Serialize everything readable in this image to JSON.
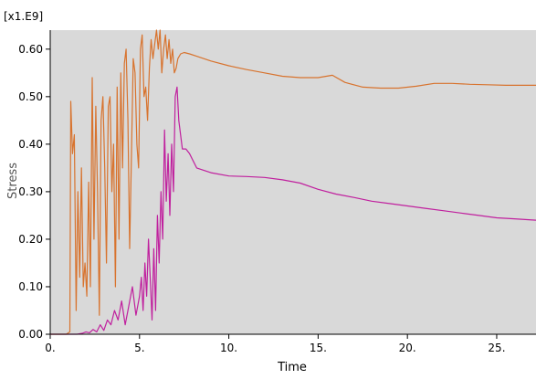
{
  "chart_data": {
    "type": "line",
    "title": "",
    "xlabel": "Time",
    "ylabel": "Stress",
    "y_scale_label": "[x1.E9]",
    "xlim": [
      0,
      27.2
    ],
    "ylim": [
      0,
      0.64
    ],
    "x_ticks": [
      0,
      5,
      10,
      15,
      20,
      25
    ],
    "x_tick_labels": [
      "0.",
      "5.",
      "10.",
      "15.",
      "20.",
      "25."
    ],
    "y_ticks": [
      0,
      0.1,
      0.2,
      0.3,
      0.4,
      0.5,
      0.6
    ],
    "y_tick_labels": [
      "0.00",
      "0.10",
      "0.20",
      "0.30",
      "0.40",
      "0.50",
      "0.60"
    ],
    "grid": false,
    "plot_background": "#d9d9d9",
    "series": [
      {
        "color": "#d8732e",
        "x": [
          0,
          0.3,
          0.6,
          0.9,
          1.1,
          1.15,
          1.25,
          1.35,
          1.45,
          1.55,
          1.65,
          1.75,
          1.85,
          1.95,
          2.05,
          2.15,
          2.25,
          2.35,
          2.45,
          2.55,
          2.65,
          2.75,
          2.85,
          2.95,
          3.05,
          3.15,
          3.25,
          3.35,
          3.45,
          3.55,
          3.65,
          3.75,
          3.85,
          3.95,
          4.05,
          4.15,
          4.25,
          4.35,
          4.45,
          4.55,
          4.65,
          4.75,
          4.85,
          4.95,
          5.05,
          5.15,
          5.25,
          5.35,
          5.45,
          5.55,
          5.65,
          5.75,
          5.85,
          5.95,
          6.05,
          6.15,
          6.25,
          6.35,
          6.45,
          6.55,
          6.65,
          6.75,
          6.85,
          6.95,
          7.05,
          7.15,
          7.3,
          7.5,
          7.8,
          8.2,
          9.0,
          10.0,
          11.0,
          12.0,
          13.0,
          14.0,
          15.0,
          15.8,
          16.5,
          17.5,
          18.5,
          19.5,
          20.5,
          21.5,
          22.5,
          23.5,
          24.5,
          25.5,
          26.5,
          27.2
        ],
        "y": [
          0,
          0,
          0,
          0,
          0.005,
          0.49,
          0.38,
          0.42,
          0.05,
          0.3,
          0.12,
          0.35,
          0.1,
          0.15,
          0.08,
          0.32,
          0.1,
          0.54,
          0.2,
          0.48,
          0.3,
          0.04,
          0.45,
          0.5,
          0.35,
          0.15,
          0.48,
          0.5,
          0.3,
          0.4,
          0.1,
          0.52,
          0.2,
          0.55,
          0.35,
          0.57,
          0.6,
          0.45,
          0.18,
          0.38,
          0.58,
          0.55,
          0.4,
          0.35,
          0.6,
          0.63,
          0.5,
          0.52,
          0.45,
          0.56,
          0.62,
          0.58,
          0.61,
          0.64,
          0.6,
          0.64,
          0.55,
          0.6,
          0.63,
          0.58,
          0.62,
          0.57,
          0.6,
          0.55,
          0.56,
          0.58,
          0.59,
          0.593,
          0.59,
          0.585,
          0.575,
          0.565,
          0.557,
          0.55,
          0.543,
          0.54,
          0.54,
          0.545,
          0.53,
          0.52,
          0.518,
          0.518,
          0.522,
          0.528,
          0.528,
          0.526,
          0.525,
          0.524,
          0.524,
          0.524
        ]
      },
      {
        "color": "#c0209e",
        "x": [
          0,
          1.0,
          1.5,
          1.8,
          2.0,
          2.2,
          2.4,
          2.6,
          2.8,
          3.0,
          3.2,
          3.4,
          3.6,
          3.8,
          4.0,
          4.2,
          4.4,
          4.6,
          4.8,
          5.0,
          5.1,
          5.2,
          5.3,
          5.4,
          5.5,
          5.6,
          5.7,
          5.8,
          5.9,
          6.0,
          6.1,
          6.2,
          6.3,
          6.4,
          6.5,
          6.6,
          6.7,
          6.8,
          6.9,
          7.0,
          7.1,
          7.2,
          7.4,
          7.6,
          7.8,
          8.2,
          9.0,
          10.0,
          11.0,
          12.0,
          13.0,
          14.0,
          15.0,
          16.0,
          17.0,
          18.0,
          19.0,
          20.0,
          21.0,
          22.0,
          23.0,
          24.0,
          25.0,
          26.0,
          27.2
        ],
        "y": [
          0,
          0,
          0,
          0.002,
          0.005,
          0.003,
          0.01,
          0.005,
          0.02,
          0.008,
          0.03,
          0.02,
          0.05,
          0.03,
          0.07,
          0.02,
          0.06,
          0.1,
          0.04,
          0.08,
          0.12,
          0.05,
          0.15,
          0.08,
          0.2,
          0.12,
          0.03,
          0.18,
          0.05,
          0.25,
          0.15,
          0.3,
          0.2,
          0.43,
          0.28,
          0.38,
          0.25,
          0.4,
          0.3,
          0.5,
          0.52,
          0.45,
          0.39,
          0.39,
          0.38,
          0.35,
          0.34,
          0.333,
          0.332,
          0.33,
          0.325,
          0.318,
          0.305,
          0.295,
          0.288,
          0.28,
          0.275,
          0.27,
          0.265,
          0.26,
          0.255,
          0.25,
          0.245,
          0.243,
          0.24
        ]
      }
    ]
  }
}
